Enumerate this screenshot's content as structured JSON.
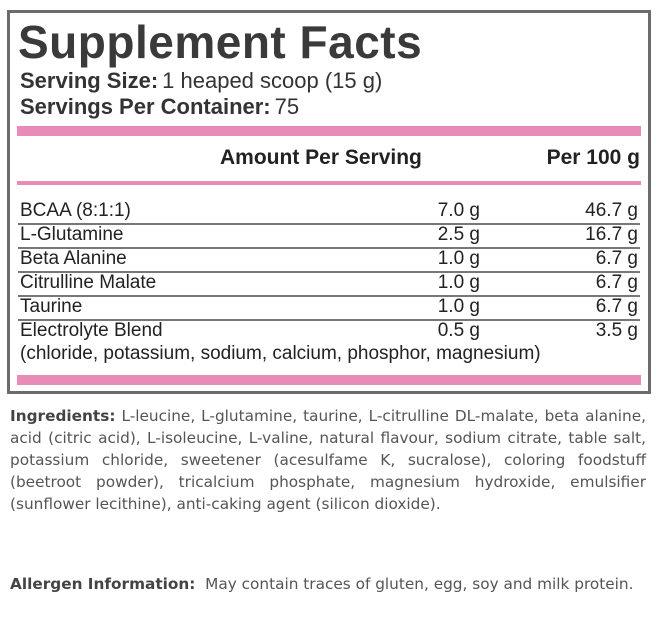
{
  "label": {
    "title": "Supplement Facts",
    "serving_size_label": "Serving Size:",
    "serving_size_value": "1 heaped scoop (15 g)",
    "servings_label": "Servings Per Container:",
    "servings_value": "75",
    "col_amount": "Amount Per Serving",
    "col_per100": "Per 100 g",
    "rows": [
      {
        "name": "BCAA (8:1:1)",
        "amount": "7.0 g",
        "per100": "46.7 g"
      },
      {
        "name": "L-Glutamine",
        "amount": "2.5 g",
        "per100": "16.7 g"
      },
      {
        "name": "Beta Alanine",
        "amount": "1.0 g",
        "per100": "6.7 g"
      },
      {
        "name": "Citrulline Malate",
        "amount": "1.0 g",
        "per100": "6.7 g"
      },
      {
        "name": "Taurine",
        "amount": "1.0 g",
        "per100": "6.7 g"
      },
      {
        "name": "Electrolyte Blend",
        "amount": "0.5 g",
        "per100": "3.5 g"
      }
    ],
    "electrolyte_note": "(chloride, potassium, sodium, calcium, phosphor, magnesium)",
    "accent_color": "#e98bb9",
    "border_color": "#6b6b6b"
  },
  "ingredients": {
    "label": "Ingredients:",
    "text": "L-leucine, L-glutamine, taurine, L-citrulline DL-malate, beta alanine, acid (citric acid), L-isoleucine, L-valine, natural flavour, sodium citrate, table salt, potassium chloride, sweetener (acesulfame K, sucralose), coloring foodstuff (beetroot powder), tricalcium phosphate, magnesium hydroxide, emulsifier (sunflower lecithine), anti-caking agent (silicon dioxide)."
  },
  "allergen": {
    "label": "Allergen Information:",
    "text": "May contain traces of gluten, egg, soy and milk protein."
  }
}
